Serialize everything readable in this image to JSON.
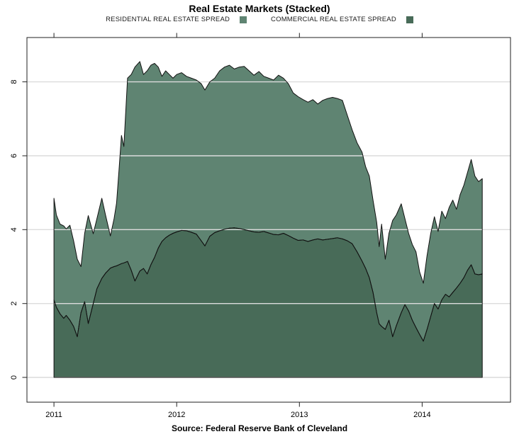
{
  "title": "Real Estate Markets (Stacked)",
  "source": "Source: Federal Reserve Bank of Cleveland",
  "legend": [
    {
      "label": "RESIDENTIAL REAL ESTATE SPREAD",
      "color": "#5f8472"
    },
    {
      "label": "COMMERCIAL REAL ESTATE SPREAD",
      "color": "#486b58"
    }
  ],
  "colors": {
    "residential_fill": "#5f8472",
    "commercial_fill": "#486b58",
    "line": "#111111",
    "gridline": "#dcdcdc",
    "frame": "#222222",
    "background": "#ffffff"
  },
  "chart_data": {
    "type": "area",
    "stacked": true,
    "title": "Real Estate Markets (Stacked)",
    "xlabel": "",
    "ylabel": "",
    "grid": "horizontal",
    "legend_position": "top",
    "xlim": [
      2010.78,
      2014.72
    ],
    "ylim": [
      -0.67,
      9.2
    ],
    "x_ticks": [
      2011,
      2012,
      2013,
      2014
    ],
    "x_tick_labels": [
      "2011",
      "2012",
      "2013",
      "2014"
    ],
    "y_ticks": [
      0,
      2,
      4,
      6,
      8
    ],
    "y_tick_labels": [
      "0",
      "2",
      "4",
      "6",
      "8"
    ],
    "x": [
      2011.0,
      2011.02,
      2011.05,
      2011.08,
      2011.1,
      2011.13,
      2011.16,
      2011.19,
      2011.22,
      2011.25,
      2011.28,
      2011.32,
      2011.35,
      2011.39,
      2011.42,
      2011.46,
      2011.49,
      2011.51,
      2011.53,
      2011.55,
      2011.57,
      2011.6,
      2011.63,
      2011.66,
      2011.7,
      2011.73,
      2011.76,
      2011.79,
      2011.82,
      2011.85,
      2011.88,
      2011.91,
      2011.94,
      2011.97,
      2012.0,
      2012.04,
      2012.08,
      2012.12,
      2012.16,
      2012.2,
      2012.23,
      2012.27,
      2012.31,
      2012.35,
      2012.39,
      2012.43,
      2012.47,
      2012.51,
      2012.55,
      2012.59,
      2012.63,
      2012.67,
      2012.71,
      2012.75,
      2012.79,
      2012.83,
      2012.87,
      2012.91,
      2012.95,
      2012.99,
      2013.03,
      2013.07,
      2013.11,
      2013.15,
      2013.19,
      2013.23,
      2013.27,
      2013.31,
      2013.35,
      2013.39,
      2013.43,
      2013.47,
      2013.51,
      2013.54,
      2013.57,
      2013.6,
      2013.63,
      2013.65,
      2013.67,
      2013.7,
      2013.73,
      2013.76,
      2013.79,
      2013.83,
      2013.86,
      2013.89,
      2013.92,
      2013.95,
      2013.98,
      2014.01,
      2014.04,
      2014.07,
      2014.1,
      2014.13,
      2014.16,
      2014.19,
      2014.22,
      2014.25,
      2014.28,
      2014.31,
      2014.34,
      2014.37,
      2014.4,
      2014.43,
      2014.46,
      2014.49
    ],
    "series": [
      {
        "name": "COMMERCIAL REAL ESTATE SPREAD",
        "color": "#486b58",
        "values": [
          2.1,
          1.9,
          1.72,
          1.6,
          1.68,
          1.55,
          1.38,
          1.1,
          1.75,
          2.05,
          1.46,
          2.0,
          2.4,
          2.68,
          2.82,
          2.96,
          3.0,
          3.02,
          3.05,
          3.08,
          3.1,
          3.14,
          2.9,
          2.61,
          2.88,
          2.95,
          2.8,
          3.05,
          3.25,
          3.5,
          3.68,
          3.78,
          3.85,
          3.9,
          3.94,
          3.98,
          3.97,
          3.93,
          3.88,
          3.7,
          3.56,
          3.82,
          3.92,
          3.97,
          4.01,
          4.04,
          4.05,
          4.03,
          4.0,
          3.97,
          3.94,
          3.93,
          3.95,
          3.91,
          3.87,
          3.86,
          3.9,
          3.84,
          3.77,
          3.71,
          3.72,
          3.68,
          3.72,
          3.75,
          3.72,
          3.74,
          3.76,
          3.78,
          3.75,
          3.7,
          3.62,
          3.4,
          3.15,
          2.95,
          2.7,
          2.3,
          1.75,
          1.45,
          1.38,
          1.3,
          1.55,
          1.1,
          1.4,
          1.75,
          1.97,
          1.8,
          1.55,
          1.35,
          1.16,
          0.98,
          1.3,
          1.65,
          2.0,
          1.85,
          2.1,
          2.25,
          2.18,
          2.3,
          2.42,
          2.55,
          2.7,
          2.9,
          3.05,
          2.8,
          2.78,
          2.8
        ]
      },
      {
        "name": "RESIDENTIAL REAL ESTATE SPREAD",
        "color": "#5f8472",
        "values": [
          2.75,
          2.5,
          2.43,
          2.5,
          2.34,
          2.57,
          2.32,
          2.1,
          1.25,
          1.85,
          2.92,
          1.89,
          1.9,
          2.17,
          1.58,
          0.87,
          1.3,
          1.7,
          2.55,
          3.47,
          3.15,
          4.96,
          5.3,
          5.79,
          5.67,
          5.25,
          5.5,
          5.4,
          5.25,
          4.9,
          4.47,
          4.52,
          4.35,
          4.2,
          4.26,
          4.27,
          4.18,
          4.17,
          4.17,
          4.25,
          4.22,
          4.18,
          4.18,
          4.33,
          4.39,
          4.41,
          4.3,
          4.37,
          4.42,
          4.33,
          4.24,
          4.35,
          4.2,
          4.19,
          4.18,
          4.32,
          4.2,
          4.11,
          3.93,
          3.89,
          3.8,
          3.77,
          3.8,
          3.65,
          3.78,
          3.81,
          3.82,
          3.77,
          3.75,
          3.4,
          3.08,
          2.95,
          2.95,
          2.75,
          2.75,
          2.5,
          2.45,
          2.09,
          2.77,
          1.9,
          2.35,
          3.15,
          3.0,
          2.95,
          2.33,
          2.1,
          2.05,
          2.05,
          1.69,
          1.57,
          2.0,
          2.25,
          2.35,
          2.1,
          2.4,
          2.05,
          2.42,
          2.5,
          2.13,
          2.4,
          2.5,
          2.65,
          2.85,
          2.65,
          2.52,
          2.58
        ]
      }
    ]
  }
}
